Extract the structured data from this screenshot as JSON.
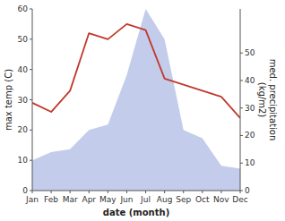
{
  "chart_data": {
    "type": "line",
    "x_label": "date (month)",
    "y_label": "max temp (C)",
    "y2_label": "med. precipitation\n(kg/m2)",
    "categories": [
      "Jan",
      "Feb",
      "Mar",
      "Apr",
      "May",
      "Jun",
      "Jul",
      "Aug",
      "Sep",
      "Oct",
      "Nov",
      "Dec"
    ],
    "series": [
      {
        "type": "line",
        "color": "#c0392b",
        "values": [
          29,
          26,
          33,
          52,
          50,
          55,
          53,
          37,
          35,
          33,
          31,
          24
        ]
      },
      {
        "type": "area",
        "color": "#b8c4e8",
        "axis": "y2",
        "values": [
          11,
          14,
          15,
          22,
          24,
          42,
          66,
          55,
          22,
          19,
          9,
          8
        ]
      }
    ],
    "ylim": [
      0,
      60
    ],
    "yticks": [
      0,
      10,
      20,
      30,
      40,
      50,
      60
    ],
    "y2lim": [
      0,
      66
    ],
    "y2ticks": [
      0,
      10,
      20,
      30,
      40,
      50
    ],
    "grid": false
  }
}
